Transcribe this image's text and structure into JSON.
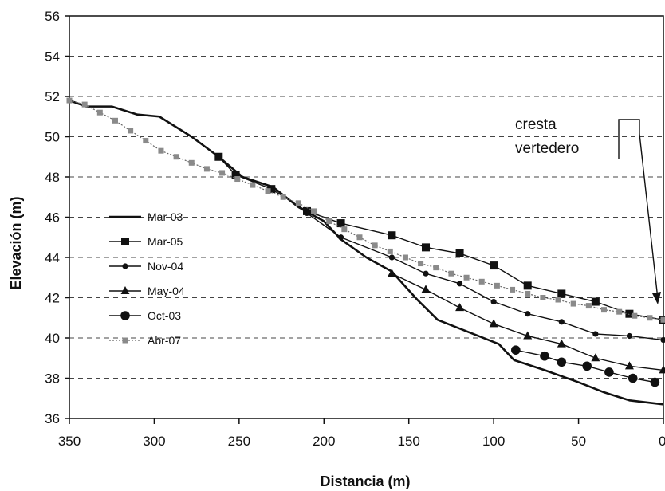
{
  "chart_data": {
    "type": "line",
    "title": "",
    "xlabel": "Distancia (m)",
    "ylabel": "Elevación (m)",
    "xlim": [
      350,
      0
    ],
    "ylim": [
      36,
      56
    ],
    "x_ticks": [
      350,
      300,
      250,
      200,
      150,
      100,
      50,
      0
    ],
    "y_ticks": [
      36,
      38,
      40,
      42,
      44,
      46,
      48,
      50,
      52,
      54,
      56
    ],
    "grid": true,
    "legend_position": "left-middle",
    "annotation": {
      "lines": [
        "cresta",
        "vertedero"
      ]
    },
    "series": [
      {
        "name": "Mar-03",
        "style": "solid-thick",
        "marker": "none",
        "color": "#111111",
        "points": [
          [
            350,
            51.8
          ],
          [
            340,
            51.5
          ],
          [
            325,
            51.5
          ],
          [
            310,
            51.1
          ],
          [
            297,
            51.0
          ],
          [
            278,
            50.0
          ],
          [
            262,
            49.0
          ],
          [
            248,
            48.0
          ],
          [
            230,
            47.5
          ],
          [
            215,
            46.5
          ],
          [
            200,
            45.8
          ],
          [
            190,
            44.9
          ],
          [
            175,
            44.0
          ],
          [
            160,
            43.3
          ],
          [
            145,
            41.9
          ],
          [
            133,
            40.9
          ],
          [
            100,
            39.8
          ],
          [
            97,
            39.7
          ],
          [
            88,
            38.9
          ],
          [
            70,
            38.4
          ],
          [
            50,
            37.8
          ],
          [
            35,
            37.3
          ],
          [
            20,
            36.9
          ],
          [
            0,
            36.7
          ]
        ]
      },
      {
        "name": "Mar-05",
        "style": "solid",
        "marker": "square",
        "color": "#111111",
        "points": [
          [
            262,
            49.0
          ],
          [
            252,
            48.1
          ],
          [
            231,
            47.4
          ],
          [
            210,
            46.3
          ],
          [
            190,
            45.7
          ],
          [
            160,
            45.1
          ],
          [
            140,
            44.5
          ],
          [
            120,
            44.2
          ],
          [
            100,
            43.6
          ],
          [
            80,
            42.6
          ],
          [
            60,
            42.2
          ],
          [
            40,
            41.8
          ],
          [
            20,
            41.2
          ],
          [
            0,
            40.9
          ]
        ]
      },
      {
        "name": "Nov-04",
        "style": "solid",
        "marker": "dot",
        "color": "#111111",
        "points": [
          [
            210,
            46.2
          ],
          [
            190,
            45.0
          ],
          [
            160,
            44.0
          ],
          [
            140,
            43.2
          ],
          [
            120,
            42.7
          ],
          [
            100,
            41.8
          ],
          [
            80,
            41.2
          ],
          [
            60,
            40.8
          ],
          [
            40,
            40.2
          ],
          [
            20,
            40.1
          ],
          [
            0,
            39.9
          ]
        ]
      },
      {
        "name": "May-04",
        "style": "solid",
        "marker": "triangle",
        "color": "#111111",
        "points": [
          [
            160,
            43.2
          ],
          [
            140,
            42.4
          ],
          [
            120,
            41.5
          ],
          [
            100,
            40.7
          ],
          [
            80,
            40.1
          ],
          [
            60,
            39.7
          ],
          [
            40,
            39.0
          ],
          [
            20,
            38.6
          ],
          [
            0,
            38.4
          ]
        ]
      },
      {
        "name": "Oct-03",
        "style": "solid",
        "marker": "circle-large",
        "color": "#111111",
        "points": [
          [
            87,
            39.4
          ],
          [
            70,
            39.1
          ],
          [
            60,
            38.8
          ],
          [
            45,
            38.6
          ],
          [
            32,
            38.3
          ],
          [
            18,
            38.0
          ],
          [
            5,
            37.8
          ]
        ]
      },
      {
        "name": "Abr-07",
        "style": "dotted",
        "marker": "square-small-gray",
        "color": "#8a8a8a",
        "points": [
          [
            350,
            51.8
          ],
          [
            341,
            51.6
          ],
          [
            332,
            51.2
          ],
          [
            323,
            50.8
          ],
          [
            314,
            50.3
          ],
          [
            305,
            49.8
          ],
          [
            296,
            49.3
          ],
          [
            287,
            49.0
          ],
          [
            278,
            48.7
          ],
          [
            269,
            48.4
          ],
          [
            260,
            48.2
          ],
          [
            251,
            47.9
          ],
          [
            242,
            47.6
          ],
          [
            233,
            47.3
          ],
          [
            224,
            47.0
          ],
          [
            215,
            46.7
          ],
          [
            206,
            46.3
          ],
          [
            197,
            45.8
          ],
          [
            188,
            45.4
          ],
          [
            179,
            45.0
          ],
          [
            170,
            44.6
          ],
          [
            161,
            44.3
          ],
          [
            152,
            44.0
          ],
          [
            143,
            43.7
          ],
          [
            134,
            43.5
          ],
          [
            125,
            43.2
          ],
          [
            116,
            43.0
          ],
          [
            107,
            42.8
          ],
          [
            98,
            42.6
          ],
          [
            89,
            42.4
          ],
          [
            80,
            42.2
          ],
          [
            71,
            42.0
          ],
          [
            62,
            41.9
          ],
          [
            53,
            41.7
          ],
          [
            44,
            41.6
          ],
          [
            35,
            41.4
          ],
          [
            26,
            41.3
          ],
          [
            17,
            41.1
          ],
          [
            8,
            41.0
          ],
          [
            0,
            40.9
          ]
        ]
      }
    ]
  }
}
